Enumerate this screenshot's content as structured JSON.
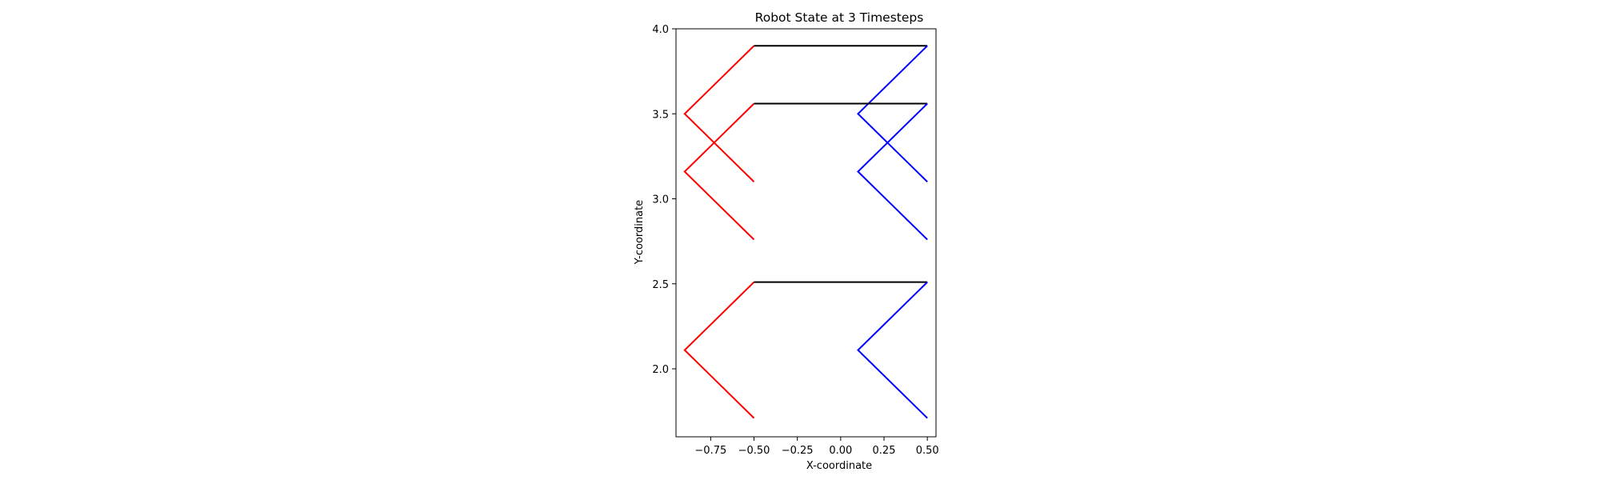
{
  "chart_data": {
    "type": "line",
    "title": "Robot State at 3 Timesteps",
    "xlabel": "X-coordinate",
    "ylabel": "Y-coordinate",
    "xlim": [
      -0.95,
      0.55
    ],
    "ylim": [
      1.6,
      4.0
    ],
    "grid": false,
    "legend": "none",
    "xticks": [
      {
        "value": -0.75,
        "label": "−0.75"
      },
      {
        "value": -0.5,
        "label": "−0.50"
      },
      {
        "value": -0.25,
        "label": "−0.25"
      },
      {
        "value": 0.0,
        "label": "0.00"
      },
      {
        "value": 0.25,
        "label": "0.25"
      },
      {
        "value": 0.5,
        "label": "0.50"
      }
    ],
    "yticks": [
      {
        "value": 2.0,
        "label": "2.0"
      },
      {
        "value": 2.5,
        "label": "2.5"
      },
      {
        "value": 3.0,
        "label": "3.0"
      },
      {
        "value": 3.5,
        "label": "3.5"
      },
      {
        "value": 4.0,
        "label": "4.0"
      }
    ],
    "colors": {
      "left_leg": "#ff0000",
      "body": "#000000",
      "right_leg": "#0000ff"
    },
    "timesteps": [
      {
        "left_leg": [
          [
            -0.5,
            3.9
          ],
          [
            -0.9,
            3.5
          ],
          [
            -0.5,
            3.1
          ]
        ],
        "body": [
          [
            -0.5,
            3.9
          ],
          [
            0.5,
            3.9
          ]
        ],
        "right_leg": [
          [
            0.5,
            3.9
          ],
          [
            0.1,
            3.5
          ],
          [
            0.5,
            3.1
          ]
        ]
      },
      {
        "left_leg": [
          [
            -0.5,
            3.56
          ],
          [
            -0.9,
            3.16
          ],
          [
            -0.5,
            2.76
          ]
        ],
        "body": [
          [
            -0.5,
            3.56
          ],
          [
            0.5,
            3.56
          ]
        ],
        "right_leg": [
          [
            0.5,
            3.56
          ],
          [
            0.1,
            3.16
          ],
          [
            0.5,
            2.76
          ]
        ]
      },
      {
        "left_leg": [
          [
            -0.5,
            2.51
          ],
          [
            -0.9,
            2.11
          ],
          [
            -0.5,
            1.71
          ]
        ],
        "body": [
          [
            -0.5,
            2.51
          ],
          [
            0.5,
            2.51
          ]
        ],
        "right_leg": [
          [
            0.5,
            2.51
          ],
          [
            0.1,
            2.11
          ],
          [
            0.5,
            1.71
          ]
        ]
      }
    ]
  }
}
